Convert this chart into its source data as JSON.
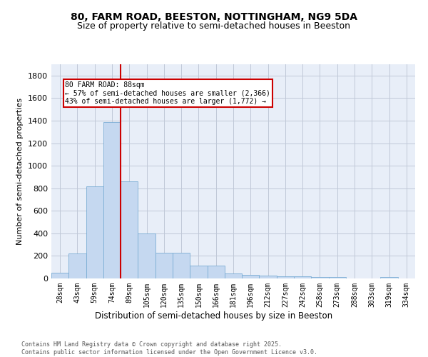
{
  "title_line1": "80, FARM ROAD, BEESTON, NOTTINGHAM, NG9 5DA",
  "title_line2": "Size of property relative to semi-detached houses in Beeston",
  "xlabel": "Distribution of semi-detached houses by size in Beeston",
  "ylabel": "Number of semi-detached properties",
  "bin_labels": [
    "28sqm",
    "43sqm",
    "59sqm",
    "74sqm",
    "89sqm",
    "105sqm",
    "120sqm",
    "135sqm",
    "150sqm",
    "166sqm",
    "181sqm",
    "196sqm",
    "212sqm",
    "227sqm",
    "242sqm",
    "258sqm",
    "273sqm",
    "288sqm",
    "303sqm",
    "319sqm",
    "334sqm"
  ],
  "bar_values": [
    50,
    220,
    820,
    1390,
    860,
    400,
    225,
    225,
    115,
    115,
    45,
    30,
    25,
    20,
    20,
    13,
    10,
    0,
    0,
    15,
    0
  ],
  "bar_color": "#c5d8f0",
  "bar_edge_color": "#7aadd4",
  "vline_x_index": 4,
  "vline_color": "#cc0000",
  "annotation_title": "80 FARM ROAD: 88sqm",
  "annotation_line1": "← 57% of semi-detached houses are smaller (2,366)",
  "annotation_line2": "43% of semi-detached houses are larger (1,772) →",
  "annotation_box_color": "#cc0000",
  "ylim": [
    0,
    1900
  ],
  "yticks": [
    0,
    200,
    400,
    600,
    800,
    1000,
    1200,
    1400,
    1600,
    1800
  ],
  "footnote_line1": "Contains HM Land Registry data © Crown copyright and database right 2025.",
  "footnote_line2": "Contains public sector information licensed under the Open Government Licence v3.0.",
  "bg_color": "#e8eef8",
  "grid_color": "#c0c8d8",
  "title1_fontsize": 10,
  "title2_fontsize": 9
}
